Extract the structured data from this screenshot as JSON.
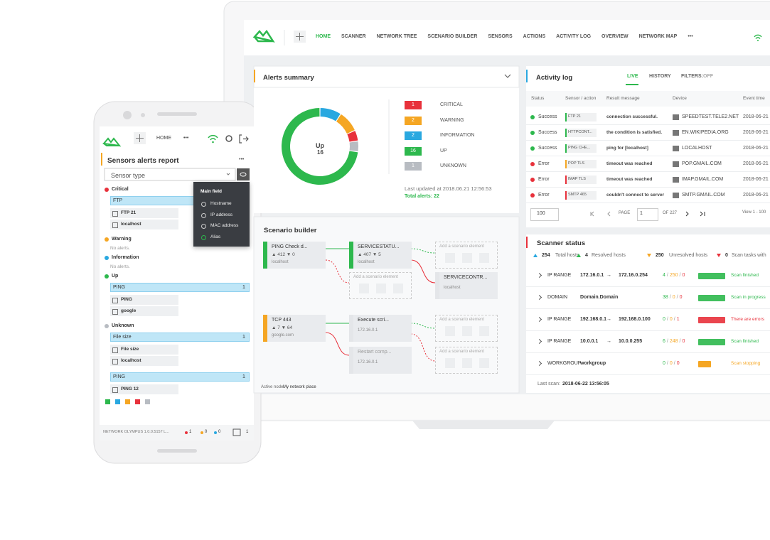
{
  "nav": {
    "items": [
      "HOME",
      "SCANNER",
      "NETWORK TREE",
      "SCENARIO BUILDER",
      "SENSORS",
      "ACTIONS",
      "ACTIVITY LOG",
      "OVERVIEW",
      "NETWORK MAP"
    ],
    "more": "•••"
  },
  "alerts": {
    "title": "Alerts summary",
    "center_label": "Up",
    "items": [
      {
        "name": "CRITICAL",
        "value": 1,
        "color": "#e8313b"
      },
      {
        "name": "WARNING",
        "value": 2,
        "color": "#f5a623"
      },
      {
        "name": "INFORMATION",
        "value": 2,
        "color": "#29a8e0"
      },
      {
        "name": "UP",
        "value": 16,
        "color": "#2db84d"
      },
      {
        "name": "UNKNOWN",
        "value": 1,
        "color": "#b8bcc2"
      }
    ],
    "last_updated": "Last updated at 2018.06.21 12:56:53",
    "total": "Total alerts: 22"
  },
  "activity": {
    "title": "Activity log",
    "tabs": [
      "LIVE",
      "HISTORY"
    ],
    "filters": "FILTERS:",
    "filters_state": "OFF",
    "columns": [
      "Status",
      "Sensor / action",
      "Result message",
      "Device",
      "Event time"
    ],
    "rows": [
      {
        "status": "Success",
        "color": "#2db84d",
        "sensor": "FTP 21",
        "sensor_color": "#2db84d",
        "message": "connection successful.",
        "device": "SPEEDTEST.TELE2.NET",
        "time": "2018-06-21"
      },
      {
        "status": "Success",
        "color": "#2db84d",
        "sensor": "HTTPCONT...",
        "sensor_color": "#2db84d",
        "message": "the condition is satisfied.",
        "device": "EN.WIKIPEDIA.ORG",
        "time": "2018-06-21"
      },
      {
        "status": "Success",
        "color": "#2db84d",
        "sensor": "PING CHE...",
        "sensor_color": "#2db84d",
        "message": "ping for [localhost]",
        "device": "LOCALHOST",
        "time": "2018-06-21"
      },
      {
        "status": "Error",
        "color": "#e8313b",
        "sensor": "POP TLS",
        "sensor_color": "#f5a623",
        "message": "timeout was reached",
        "device": "POP.GMAIL.COM",
        "time": "2018-06-21"
      },
      {
        "status": "Error",
        "color": "#e8313b",
        "sensor": "IMAP TLS",
        "sensor_color": "#e8313b",
        "message": "timeout was reached",
        "device": "IMAP.GMAIL.COM",
        "time": "2018-06-21"
      },
      {
        "status": "Error",
        "color": "#e8313b",
        "sensor": "SMTP 465",
        "sensor_color": "#e8313b",
        "message": "couldn't connect to server",
        "device": "SMTP.GMAIL.COM",
        "time": "2018-06-21"
      }
    ],
    "page_size": "100",
    "page_label": "PAGE",
    "page": "1",
    "page_count": "OF 227",
    "view": "View 1 - 100"
  },
  "scenario": {
    "title": "Scenario builder",
    "placeholder": "Add a scenario element",
    "nodes": [
      {
        "title": "PING Check d...",
        "stats": "▲ 412  ▼ 0",
        "host": "localhost",
        "color": "#2db84d"
      },
      {
        "title": "SERVICESTATU...",
        "stats": "▲ 407  ▼ 5",
        "host": "localhost",
        "color": "#2db84d"
      },
      {
        "title": "TCP 443",
        "stats": "▲ 7  ▼ 64",
        "host": "google.com",
        "color": "#f5a623"
      },
      {
        "title": "Execute scri...",
        "host": "172.16.0.1",
        "color": "#e4e6e9"
      },
      {
        "title": "Restart comp...",
        "host": "172.16.0.1",
        "color": "#e4e6e9"
      },
      {
        "title": "SERVICECONTR...",
        "host": "localhost",
        "color": "#e4e6e9"
      }
    ],
    "footer_label": "Active node:",
    "footer_value": "My network place"
  },
  "scanner": {
    "title": "Scanner status",
    "arrow": "→",
    "separator": "/",
    "summary": [
      {
        "value": "254",
        "label": "Total hosts",
        "color": "#29a8e0"
      },
      {
        "value": "4",
        "label": "Resolved hosts",
        "color": "#2db84d"
      },
      {
        "value": "250",
        "label": "Unresolved hosts",
        "color": "#f5a623"
      },
      {
        "value": "0",
        "label": "Scan tasks with",
        "color": "#e8313b"
      }
    ],
    "rows": [
      {
        "type": "IP RANGE",
        "from": "172.16.0.1",
        "to": "172.16.0.254",
        "counts": [
          "4",
          "250",
          "0"
        ],
        "status": "Scan finished",
        "color": "#2db84d"
      },
      {
        "type": "DOMAIN",
        "from": "Domain.Domain",
        "counts": [
          "38",
          "0",
          "0"
        ],
        "status": "Scan in progress",
        "color": "#2db84d"
      },
      {
        "type": "IP RANGE",
        "from": "192.168.0.1",
        "to": "192.168.0.100",
        "counts": [
          "0",
          "0",
          "1"
        ],
        "status": "There are errors",
        "color": "#e8313b"
      },
      {
        "type": "IP RANGE",
        "from": "10.0.0.1",
        "to": "10.0.0.255",
        "counts": [
          "6",
          "248",
          "0"
        ],
        "status": "Scan finished",
        "color": "#2db84d"
      },
      {
        "type": "WORKGROUP",
        "from": "workgroup",
        "counts": [
          "0",
          "0",
          "0"
        ],
        "status": "Scan stopping",
        "color": "#f5a623"
      }
    ],
    "last_scan_label": "Last scan:",
    "last_scan": "2018-06-22 13:56:05"
  },
  "phone": {
    "nav": "HOME",
    "more": "•••",
    "title": "Sensors alerts report",
    "title_more": "•••",
    "select": "Sensor type",
    "menu": {
      "title": "Main field",
      "options": [
        "Hostname",
        "IP address",
        "MAC address",
        "Alias"
      ]
    },
    "groups": [
      {
        "name": "Critical",
        "color": "#e8313b",
        "entries": [
          {
            "name": "FTP",
            "details": [
              "FTP 21",
              "localhost"
            ]
          }
        ]
      },
      {
        "name": "Warning",
        "color": "#f5a623",
        "empty": "No alerts."
      },
      {
        "name": "Information",
        "color": "#29a8e0",
        "empty": "No alerts."
      },
      {
        "name": "Up",
        "color": "#2db84d",
        "entries": [
          {
            "name": "PING",
            "count": "1",
            "details": [
              "PING",
              "google"
            ]
          }
        ]
      },
      {
        "name": "Unknown",
        "color": "#b8bcc2",
        "entries": [
          {
            "name": "File size",
            "count": "1",
            "details": [
              "File size",
              "localhost"
            ]
          },
          {
            "name": "PING",
            "count": "1",
            "details": [
              "PING 12"
            ]
          }
        ]
      }
    ],
    "footer": {
      "version": "NETWORK OLYMPUS 1.0.0.5157 L...",
      "counts": [
        "1",
        "0",
        "0"
      ],
      "count": "1"
    }
  }
}
